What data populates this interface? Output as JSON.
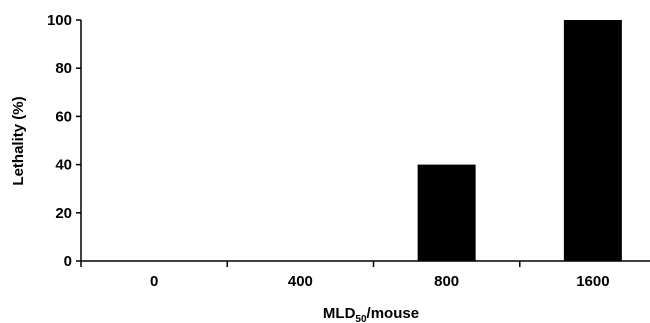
{
  "chart_data": {
    "type": "bar",
    "categories": [
      "0",
      "400",
      "800",
      "1600"
    ],
    "values": [
      0,
      0,
      40,
      100
    ],
    "ylim": [
      0,
      100
    ],
    "yticks": [
      0,
      20,
      40,
      60,
      80,
      100
    ],
    "xlabel": {
      "main": "MLD",
      "subscript": "50",
      "suffix": "/mouse"
    },
    "ylabel": "Lethality (%)",
    "bar_color": "#000000",
    "grid": false,
    "legend": "none"
  }
}
